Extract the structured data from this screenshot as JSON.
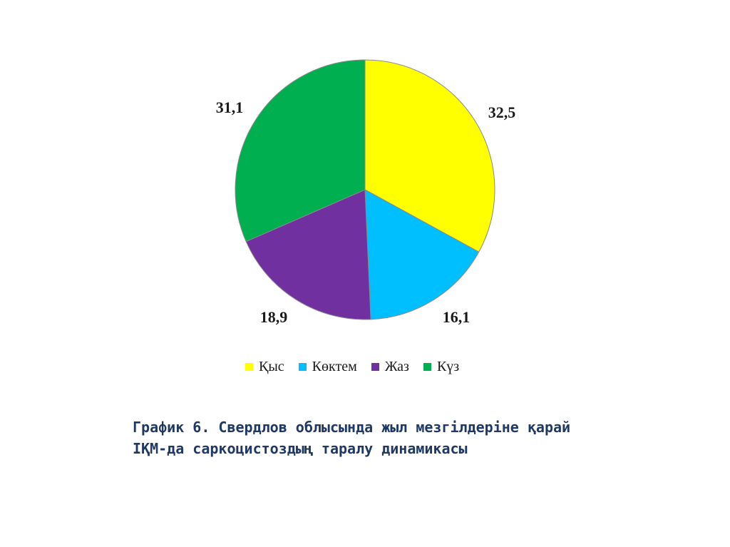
{
  "chart_data": {
    "type": "pie",
    "categories": [
      "Қыс",
      "Көктем",
      "Жаз",
      "Күз"
    ],
    "values": [
      32.5,
      16.1,
      18.9,
      31.1
    ],
    "data_labels": [
      "32,5",
      "16,1",
      "18,9",
      "31,1"
    ],
    "colors": [
      "#ffff00",
      "#00bfff",
      "#7030a0",
      "#00b050"
    ],
    "start_angle": "top",
    "direction": "clockwise",
    "legend": "bottom"
  },
  "caption": {
    "line1": "График 6. Свердлов облысында жыл мезгілдеріне қарай",
    "line2": "ІҚМ-да саркоцистоздың таралу динамикасы"
  }
}
